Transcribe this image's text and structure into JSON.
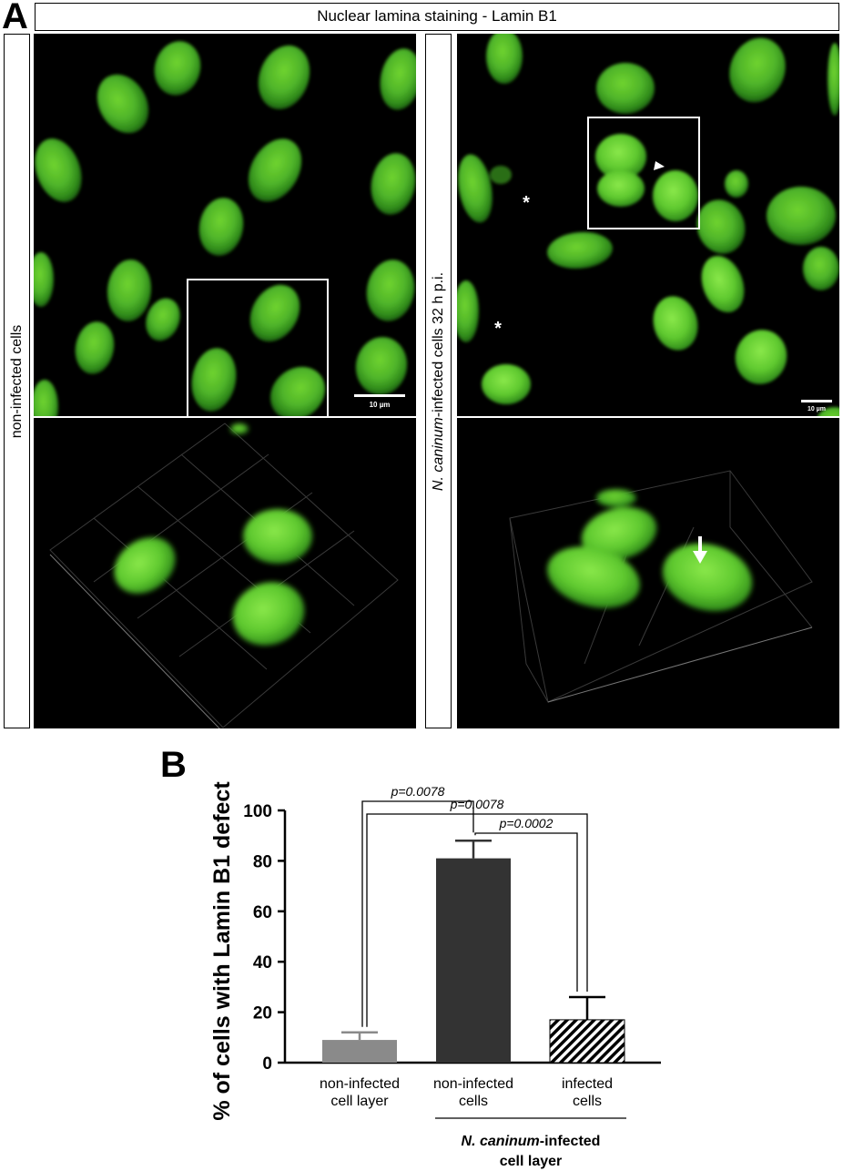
{
  "figure": {
    "panel_a_letter": "A",
    "panel_b_letter": "B",
    "header_title": "Nuclear lamina staining - Lamin B1",
    "row_label_left": "non-infected cells",
    "row_label_right_italic": "N. caninum",
    "row_label_right_rest": "-infected cells 32 h p.i.",
    "scale_bar_left": "10 µm",
    "scale_bar_right": "10 µm",
    "asterisk": "*"
  },
  "chart_data": {
    "type": "bar",
    "categories": [
      "non-infected cell layer",
      "non-infected cells",
      "infected cells"
    ],
    "category_lines": [
      [
        "non-infected",
        "cell layer"
      ],
      [
        "non-infected",
        "cells"
      ],
      [
        "infected",
        "cells"
      ]
    ],
    "values": [
      9,
      81,
      17
    ],
    "errors": [
      3,
      7,
      9
    ],
    "bar_colors": [
      "#8a8a8a",
      "#333333",
      "hatched"
    ],
    "ylabel": "% of cells with Lamin B1 defect",
    "ylim": [
      0,
      100
    ],
    "yticks": [
      0,
      20,
      40,
      60,
      80,
      100
    ],
    "group_label_italic": "N. caninum",
    "group_label_rest": "-infected",
    "group_label_line2": "cell layer",
    "comparisons": [
      {
        "from": 0,
        "to": 1,
        "label": "p=0.0078"
      },
      {
        "from": 1,
        "to": 2,
        "label": "p=0.0002"
      },
      {
        "from": 0,
        "to": 2,
        "label": "p=0.0078"
      }
    ]
  }
}
